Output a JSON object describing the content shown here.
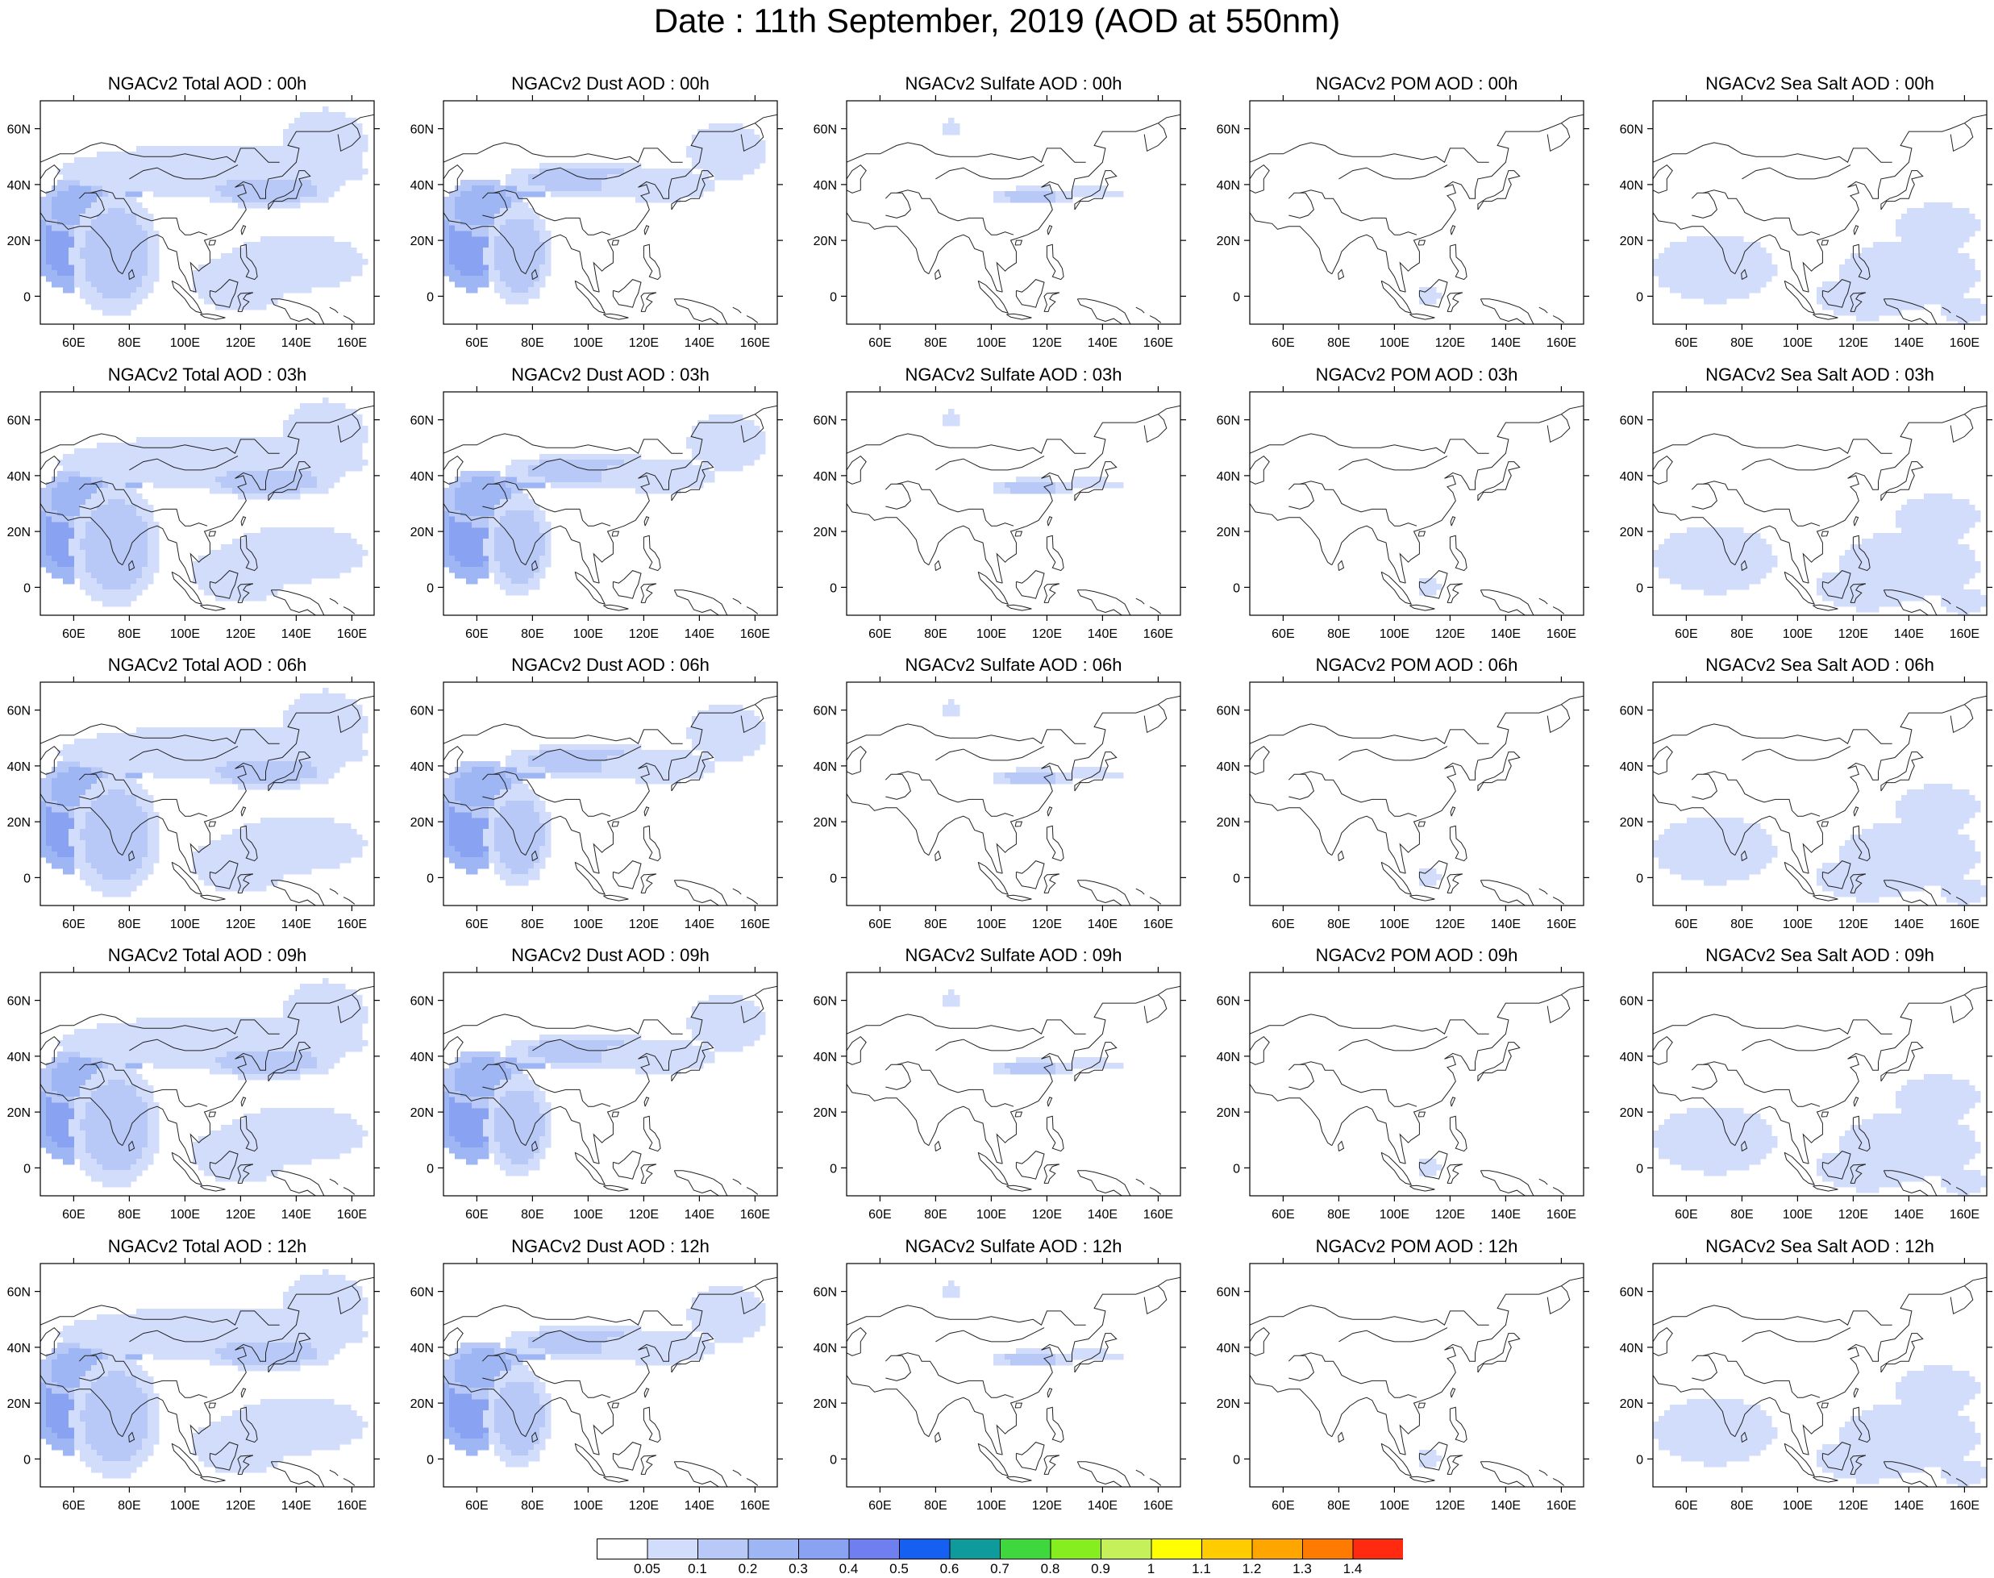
{
  "title": "Date : 11th September, 2019 (AOD at 550nm)",
  "map": {
    "lon_range": [
      48,
      168
    ],
    "lat_range": [
      -10,
      70
    ],
    "lon_ticks": [
      "60E",
      "80E",
      "100E",
      "120E",
      "140E",
      "160E"
    ],
    "lat_ticks": [
      "60N",
      "40N",
      "20N",
      "0"
    ],
    "coastline_color": "#222222"
  },
  "columns": [
    "Total",
    "Dust",
    "Sulfate",
    "POM",
    "Sea Salt"
  ],
  "panels": [
    [
      "NGACv2 Total AOD : 00h",
      "NGACv2 Dust AOD : 00h",
      "NGACv2 Sulfate AOD : 00h",
      "NGACv2 POM AOD : 00h",
      "NGACv2 Sea Salt AOD : 00h"
    ],
    [
      "NGACv2 Total AOD : 03h",
      "NGACv2 Dust AOD : 03h",
      "NGACv2 Sulfate AOD : 03h",
      "NGACv2 POM AOD : 03h",
      "NGACv2 Sea Salt AOD : 03h"
    ],
    [
      "NGACv2 Total AOD : 06h",
      "NGACv2 Dust AOD : 06h",
      "NGACv2 Sulfate AOD : 06h",
      "NGACv2 POM AOD : 06h",
      "NGACv2 Sea Salt AOD : 06h"
    ],
    [
      "NGACv2 Total AOD : 09h",
      "NGACv2 Dust AOD : 09h",
      "NGACv2 Sulfate AOD : 09h",
      "NGACv2 POM AOD : 09h",
      "NGACv2 Sea Salt  AOD : 09h"
    ],
    [
      "NGACv2 Total AOD  : 12h",
      "NGACv2 Dust AOD : 12h",
      "NGACv2 Sulfate AOD : 12h",
      "NGACv2 POM  AOD : 12h",
      "NGACv2 Sea Salt  AOD : 12h"
    ]
  ],
  "colorbar": {
    "colors": [
      "#ffffff",
      "#d2ddfb",
      "#b8c9f8",
      "#9fb6f5",
      "#8aa2f2",
      "#6f7ff0",
      "#1560f0",
      "#0f9b9b",
      "#3ed73e",
      "#86ee1e",
      "#c6f05a",
      "#ffff00",
      "#ffcc00",
      "#ffa500",
      "#ff7a00",
      "#ff2a10"
    ],
    "labels": [
      "0.05",
      "0.1",
      "0.2",
      "0.3",
      "0.4",
      "0.5",
      "0.6",
      "0.7",
      "0.8",
      "0.9",
      "1",
      "1.1",
      "1.2",
      "1.3",
      "1.4"
    ]
  },
  "aerosol_fields": {
    "Total": [
      {
        "lon": 58,
        "lat": 20,
        "rx": 12,
        "ry": 18,
        "level": 4
      },
      {
        "lon": 62,
        "lat": 32,
        "rx": 14,
        "ry": 10,
        "level": 3
      },
      {
        "lon": 80,
        "lat": 40,
        "rx": 10,
        "ry": 4,
        "level": 4
      },
      {
        "lon": 105,
        "lat": 38,
        "rx": 10,
        "ry": 3,
        "level": 3
      },
      {
        "lon": 110,
        "lat": 45,
        "rx": 55,
        "ry": 9,
        "level": 1
      },
      {
        "lon": 75,
        "lat": 15,
        "rx": 16,
        "ry": 22,
        "level": 2
      },
      {
        "lon": 130,
        "lat": 38,
        "rx": 25,
        "ry": 6,
        "level": 2
      },
      {
        "lon": 140,
        "lat": 12,
        "rx": 25,
        "ry": 10,
        "level": 1
      },
      {
        "lon": 120,
        "lat": 5,
        "rx": 18,
        "ry": 10,
        "level": 1
      },
      {
        "lon": 150,
        "lat": 55,
        "rx": 15,
        "ry": 12,
        "level": 1
      }
    ],
    "Dust": [
      {
        "lon": 58,
        "lat": 20,
        "rx": 12,
        "ry": 18,
        "level": 4
      },
      {
        "lon": 62,
        "lat": 32,
        "rx": 14,
        "ry": 10,
        "level": 3
      },
      {
        "lon": 80,
        "lat": 40,
        "rx": 10,
        "ry": 4,
        "level": 4
      },
      {
        "lon": 100,
        "lat": 42,
        "rx": 30,
        "ry": 6,
        "level": 2
      },
      {
        "lon": 125,
        "lat": 40,
        "rx": 20,
        "ry": 6,
        "level": 1
      },
      {
        "lon": 75,
        "lat": 15,
        "rx": 12,
        "ry": 18,
        "level": 2
      },
      {
        "lon": 150,
        "lat": 52,
        "rx": 14,
        "ry": 10,
        "level": 1
      }
    ],
    "Sulfate": [
      {
        "lon": 115,
        "lat": 36,
        "rx": 15,
        "ry": 3,
        "level": 2
      },
      {
        "lon": 135,
        "lat": 37,
        "rx": 12,
        "ry": 2,
        "level": 1
      },
      {
        "lon": 85,
        "lat": 60,
        "rx": 3,
        "ry": 3,
        "level": 1
      }
    ],
    "POM": [
      {
        "lon": 112,
        "lat": 0,
        "rx": 4,
        "ry": 3,
        "level": 1
      }
    ],
    "Sea Salt": [
      {
        "lon": 70,
        "lat": 10,
        "rx": 22,
        "ry": 12,
        "level": 1
      },
      {
        "lon": 140,
        "lat": 8,
        "rx": 25,
        "ry": 12,
        "level": 1
      },
      {
        "lon": 125,
        "lat": 0,
        "rx": 18,
        "ry": 8,
        "level": 1
      },
      {
        "lon": 150,
        "lat": 25,
        "rx": 15,
        "ry": 8,
        "level": 1
      },
      {
        "lon": 160,
        "lat": -5,
        "rx": 8,
        "ry": 5,
        "level": 1
      }
    ]
  }
}
